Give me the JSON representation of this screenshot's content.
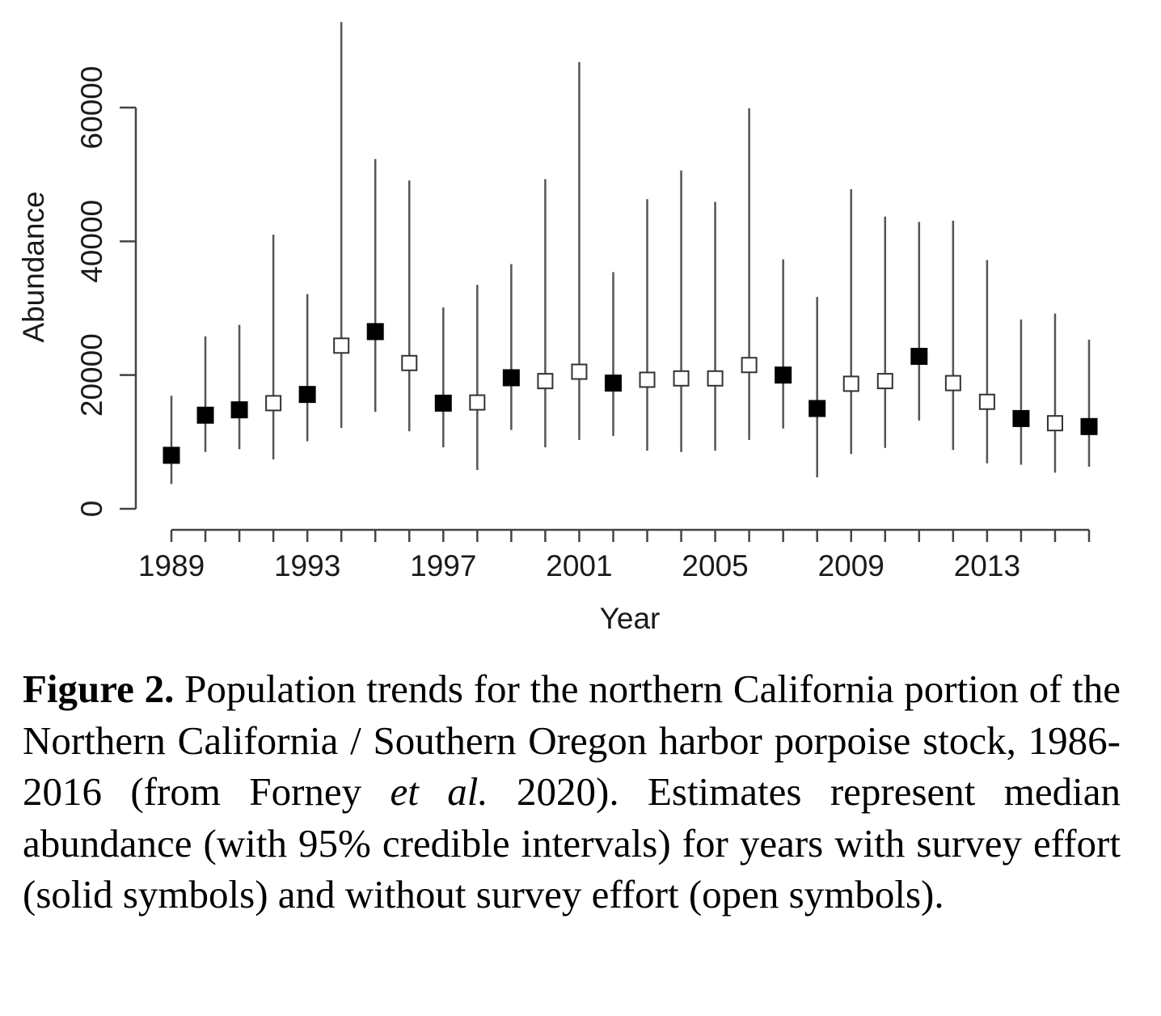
{
  "chart_data": {
    "type": "scatter",
    "xlabel": "Year",
    "ylabel": "Abundance",
    "xlim": [
      1989,
      2016
    ],
    "ylim": [
      0,
      60000
    ],
    "x_ticks": [
      1989,
      1990,
      1991,
      1992,
      1993,
      1994,
      1995,
      1996,
      1997,
      1998,
      1999,
      2000,
      2001,
      2002,
      2003,
      2004,
      2005,
      2006,
      2007,
      2008,
      2009,
      2010,
      2011,
      2012,
      2013,
      2014,
      2015,
      2016
    ],
    "x_tick_labels": [
      "1989",
      "1993",
      "1997",
      "2001",
      "2005",
      "2009",
      "2013"
    ],
    "x_tick_label_values": [
      1989,
      1993,
      1997,
      2001,
      2005,
      2009,
      2013
    ],
    "y_ticks": [
      0,
      20000,
      40000,
      60000
    ],
    "y_tick_labels": [
      "0",
      "20000",
      "40000",
      "60000"
    ],
    "grid": false,
    "legend": "none",
    "marker_colors": {
      "survey": "#000000",
      "no_survey": "#ffffff",
      "outline": "#333333",
      "interval": "#555555"
    },
    "points": [
      {
        "year": 1989,
        "median": 8000,
        "lower": 3700,
        "upper": 16900,
        "survey": true
      },
      {
        "year": 1990,
        "median": 14000,
        "lower": 8500,
        "upper": 25800,
        "survey": true
      },
      {
        "year": 1991,
        "median": 14800,
        "lower": 8900,
        "upper": 27500,
        "survey": true
      },
      {
        "year": 1992,
        "median": 15800,
        "lower": 7400,
        "upper": 41000,
        "survey": false
      },
      {
        "year": 1993,
        "median": 17100,
        "lower": 10100,
        "upper": 32100,
        "survey": true
      },
      {
        "year": 1994,
        "median": 24400,
        "lower": 12100,
        "upper": 72800,
        "survey": false
      },
      {
        "year": 1995,
        "median": 26500,
        "lower": 14500,
        "upper": 52300,
        "survey": true
      },
      {
        "year": 1996,
        "median": 21800,
        "lower": 11600,
        "upper": 49100,
        "survey": false
      },
      {
        "year": 1997,
        "median": 15800,
        "lower": 9200,
        "upper": 30100,
        "survey": true
      },
      {
        "year": 1998,
        "median": 15900,
        "lower": 5800,
        "upper": 33500,
        "survey": false
      },
      {
        "year": 1999,
        "median": 19600,
        "lower": 11800,
        "upper": 36600,
        "survey": true
      },
      {
        "year": 2000,
        "median": 19100,
        "lower": 9200,
        "upper": 49300,
        "survey": false
      },
      {
        "year": 2001,
        "median": 20500,
        "lower": 10300,
        "upper": 66800,
        "survey": false
      },
      {
        "year": 2002,
        "median": 18800,
        "lower": 10900,
        "upper": 35400,
        "survey": true
      },
      {
        "year": 2003,
        "median": 19300,
        "lower": 8700,
        "upper": 46300,
        "survey": false
      },
      {
        "year": 2004,
        "median": 19500,
        "lower": 8500,
        "upper": 50600,
        "survey": false
      },
      {
        "year": 2005,
        "median": 19500,
        "lower": 8700,
        "upper": 45900,
        "survey": false
      },
      {
        "year": 2006,
        "median": 21500,
        "lower": 10300,
        "upper": 59900,
        "survey": false
      },
      {
        "year": 2007,
        "median": 20000,
        "lower": 12000,
        "upper": 37300,
        "survey": true
      },
      {
        "year": 2008,
        "median": 15000,
        "lower": 4700,
        "upper": 31700,
        "survey": true
      },
      {
        "year": 2009,
        "median": 18700,
        "lower": 8200,
        "upper": 47800,
        "survey": false
      },
      {
        "year": 2010,
        "median": 19100,
        "lower": 9100,
        "upper": 43700,
        "survey": false
      },
      {
        "year": 2011,
        "median": 22800,
        "lower": 13200,
        "upper": 42900,
        "survey": true
      },
      {
        "year": 2012,
        "median": 18800,
        "lower": 8800,
        "upper": 43100,
        "survey": false
      },
      {
        "year": 2013,
        "median": 16000,
        "lower": 6800,
        "upper": 37200,
        "survey": false
      },
      {
        "year": 2014,
        "median": 13500,
        "lower": 6600,
        "upper": 28300,
        "survey": true
      },
      {
        "year": 2015,
        "median": 12800,
        "lower": 5400,
        "upper": 29200,
        "survey": false
      },
      {
        "year": 2016,
        "median": 12300,
        "lower": 6300,
        "upper": 25300,
        "survey": true
      }
    ]
  },
  "caption": {
    "label": "Figure 2.",
    "text_1": " Population trends for the northern California portion of the Northern California / Southern Oregon harbor porpoise stock, 1986-2016 (from Forney ",
    "italic": "et al.",
    "text_2": " 2020). Estimates represent median abundance (with 95% credible intervals) for years with survey effort (solid symbols) and without survey effort (open symbols)."
  }
}
